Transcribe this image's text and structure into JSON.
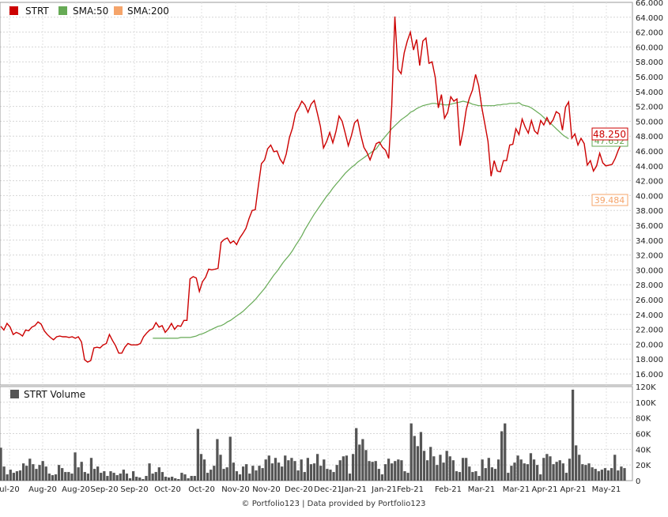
{
  "legend": {
    "price": {
      "label": "STRT",
      "color": "#cc0000"
    },
    "sma50": {
      "label": "SMA:50",
      "color": "#66aa55"
    },
    "sma200": {
      "label": "SMA:200",
      "color": "#f5a46a"
    }
  },
  "volume_legend": {
    "label": "STRT Volume",
    "color": "#555555"
  },
  "footer": "© Portfolio123 | Data provided by Portfolio123",
  "price_badges": {
    "last": "48.250",
    "sma50": "47.652",
    "sma200": "39.484"
  },
  "chart_data": [
    {
      "type": "line",
      "x_labels": [
        "ul-20",
        "Aug-20",
        "Aug-20",
        "Sep-20",
        "Sep-20",
        "Oct-20",
        "Oct-20",
        "Nov-20",
        "Nov-20",
        "Dec-20",
        "Dec-21",
        "Jan-21",
        "Jan-21",
        "Feb-21",
        "Feb-21",
        "Mar-21",
        "Mar-21",
        "Apr-21",
        "Apr-21",
        "May-21"
      ],
      "ylim": [
        16,
        66
      ],
      "y_ticks": [
        "16.000",
        "18.000",
        "20.000",
        "22.000",
        "24.000",
        "26.000",
        "28.000",
        "30.000",
        "32.000",
        "34.000",
        "36.000",
        "38.000",
        "40.000",
        "42.000",
        "44.000",
        "46.000",
        "48.000",
        "50.000",
        "52.000",
        "54.000",
        "56.000",
        "58.000",
        "60.000",
        "62.000",
        "64.000",
        "66.000"
      ],
      "series": [
        {
          "name": "STRT",
          "values": [
            22.4,
            21.9,
            22.8,
            22.3,
            21.3,
            21.6,
            21.4,
            21.1,
            21.9,
            21.8,
            22.3,
            22.5,
            23.0,
            22.7,
            21.8,
            21.3,
            20.9,
            20.6,
            21.0,
            21.1,
            21.0,
            21.0,
            20.9,
            21.0,
            20.8,
            21.0,
            20.3,
            17.9,
            17.6,
            17.8,
            19.5,
            19.6,
            19.5,
            19.9,
            20.1,
            21.3,
            20.5,
            19.8,
            18.8,
            18.8,
            19.6,
            20.1,
            19.9,
            19.9,
            19.9,
            20.1,
            21.0,
            21.5,
            21.9,
            22.1,
            22.9,
            22.3,
            22.5,
            21.6,
            22.1,
            22.8,
            22.0,
            22.5,
            22.4,
            23.2,
            23.2,
            28.8,
            29.1,
            28.9,
            27.1,
            28.4,
            29.0,
            30.1,
            30.0,
            30.1,
            30.2,
            33.7,
            34.1,
            34.3,
            33.6,
            33.9,
            33.4,
            34.3,
            34.9,
            35.6,
            36.9,
            38.0,
            38.1,
            41.3,
            44.3,
            44.8,
            46.3,
            46.8,
            45.9,
            46.0,
            44.9,
            44.3,
            45.6,
            47.8,
            49.1,
            51.1,
            51.8,
            52.7,
            52.2,
            51.2,
            52.3,
            52.8,
            51.1,
            49.3,
            46.4,
            47.3,
            48.5,
            47.1,
            48.6,
            50.7,
            50.0,
            48.4,
            46.7,
            48.1,
            49.8,
            50.2,
            48.2,
            46.5,
            45.8,
            44.8,
            45.9,
            47.0,
            47.2,
            46.5,
            46.1,
            45.0,
            52.2,
            64.1,
            57.0,
            56.4,
            59.2,
            60.8,
            62.0,
            59.6,
            61.0,
            57.5,
            60.8,
            61.2,
            57.8,
            58.0,
            55.9,
            51.8,
            53.6,
            50.4,
            51.2,
            53.3,
            52.7,
            53.0,
            46.7,
            48.8,
            51.6,
            53.1,
            54.2,
            56.3,
            54.8,
            51.9,
            49.6,
            47.3,
            42.6,
            44.7,
            43.3,
            43.2,
            44.7,
            44.7,
            46.8,
            46.9,
            49.0,
            48.2,
            50.3,
            49.2,
            48.4,
            50.1,
            48.7,
            48.3,
            50.1,
            49.5,
            50.5,
            49.6,
            50.2,
            51.3,
            51.0,
            48.8,
            51.9,
            52.6,
            47.7,
            48.3,
            46.8,
            47.7,
            47.0,
            44.1,
            44.7,
            43.3,
            44.0,
            45.7,
            44.4,
            44.0,
            44.1,
            44.2,
            45.0,
            46.1,
            47.0,
            48.25
          ]
        },
        {
          "name": "SMA:50",
          "start_index": 49,
          "values": [
            20.8,
            20.8,
            20.8,
            20.8,
            20.8,
            20.8,
            20.8,
            20.8,
            20.8,
            20.9,
            20.9,
            20.9,
            20.9,
            21.0,
            21.1,
            21.3,
            21.4,
            21.6,
            21.8,
            22.0,
            22.2,
            22.4,
            22.5,
            22.7,
            23.0,
            23.2,
            23.5,
            23.8,
            24.1,
            24.4,
            24.8,
            25.2,
            25.6,
            26.0,
            26.5,
            27.0,
            27.5,
            28.1,
            28.7,
            29.3,
            29.8,
            30.4,
            31.0,
            31.5,
            32.0,
            32.6,
            33.3,
            33.9,
            34.6,
            35.4,
            36.1,
            36.8,
            37.5,
            38.1,
            38.7,
            39.3,
            39.9,
            40.4,
            41.0,
            41.5,
            42.0,
            42.5,
            43.0,
            43.4,
            43.8,
            44.1,
            44.5,
            44.8,
            45.1,
            45.4,
            45.7,
            46.0,
            46.3,
            46.9,
            47.5,
            48.0,
            48.5,
            49.0,
            49.4,
            49.8,
            50.2,
            50.5,
            50.8,
            51.2,
            51.4,
            51.7,
            51.9,
            52.1,
            52.2,
            52.3,
            52.4,
            52.4,
            52.3,
            52.3,
            52.2,
            52.2,
            52.3,
            52.4,
            52.5,
            52.6,
            52.7,
            52.6,
            52.5,
            52.3,
            52.2,
            52.1,
            52.1,
            52.1,
            52.1,
            52.1,
            52.1,
            52.2,
            52.2,
            52.3,
            52.3,
            52.4,
            52.4,
            52.4,
            52.5,
            52.2,
            52.1,
            52.0,
            51.8,
            51.5,
            51.2,
            50.9,
            50.5,
            50.1,
            49.8,
            49.4,
            49.0,
            48.6,
            48.2,
            47.9,
            47.652
          ]
        }
      ]
    },
    {
      "type": "bar",
      "title": "STRT Volume",
      "ylim": [
        0,
        120000
      ],
      "y_ticks": [
        "0",
        "20K",
        "40K",
        "60K",
        "80K",
        "100K",
        "120K"
      ],
      "series": [
        {
          "name": "STRT Volume",
          "values": [
            42000,
            18000,
            8000,
            14000,
            10000,
            12000,
            13000,
            22000,
            19000,
            28000,
            21000,
            15000,
            20000,
            25000,
            18000,
            9000,
            7000,
            8000,
            20000,
            16000,
            11000,
            11000,
            9000,
            36000,
            17000,
            24000,
            11000,
            9000,
            29000,
            15000,
            18000,
            10000,
            12000,
            6000,
            12000,
            10000,
            7000,
            9000,
            14000,
            9000,
            3000,
            12000,
            5000,
            4000,
            2000,
            6000,
            22000,
            9000,
            11000,
            17000,
            11000,
            5000,
            4000,
            5000,
            3000,
            2000,
            10000,
            8000,
            3000,
            6000,
            6000,
            66000,
            34000,
            27000,
            10000,
            14000,
            19000,
            53000,
            33000,
            15000,
            17000,
            56000,
            23000,
            12000,
            8000,
            18000,
            21000,
            9000,
            19000,
            13000,
            19000,
            16000,
            27000,
            32000,
            22000,
            29000,
            23000,
            18000,
            32000,
            26000,
            29000,
            25000,
            13000,
            27000,
            11000,
            29000,
            21000,
            22000,
            34000,
            19000,
            27000,
            15000,
            14000,
            11000,
            20000,
            26000,
            31000,
            32000,
            9000,
            34000,
            67000,
            46000,
            53000,
            39000,
            25000,
            24000,
            25000,
            15000,
            8000,
            21000,
            28000,
            22000,
            25000,
            27000,
            26000,
            12000,
            10000,
            73000,
            57000,
            44000,
            62000,
            38000,
            26000,
            43000,
            31000,
            20000,
            33000,
            23000,
            38000,
            31000,
            26000,
            12000,
            11000,
            29000,
            29000,
            18000,
            11000,
            12000,
            6000,
            27000,
            16000,
            29000,
            17000,
            15000,
            27000,
            63000,
            73000,
            10000,
            19000,
            23000,
            32000,
            27000,
            22000,
            21000,
            35000,
            27000,
            20000,
            8000,
            29000,
            34000,
            31000,
            21000,
            24000,
            26000,
            22000,
            10000,
            28000,
            116000,
            45000,
            33000,
            21000,
            20000,
            22000,
            17000,
            15000,
            12000,
            14000,
            16000,
            13000,
            16000,
            33000,
            13000,
            18000,
            16000
          ]
        }
      ]
    }
  ]
}
